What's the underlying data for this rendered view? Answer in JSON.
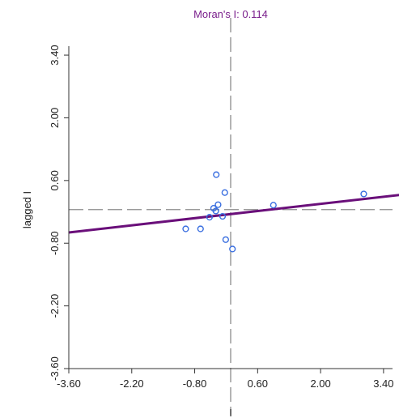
{
  "chart_data": {
    "type": "scatter",
    "title": "Moran's I: 0.114",
    "title_color": "#7a1f8c",
    "xlabel": "I",
    "ylabel": "lagged I",
    "xlim": [
      -3.6,
      3.6
    ],
    "ylim": [
      -3.6,
      3.6
    ],
    "x_ticks": [
      -3.6,
      -2.2,
      -0.8,
      0.6,
      2.0,
      3.4
    ],
    "x_tick_labels": [
      "-3.60",
      "-2.20",
      "-0.80",
      "0.60",
      "2.00",
      "3.40"
    ],
    "y_ticks": [
      -3.6,
      -2.2,
      -0.8,
      0.6,
      2.0,
      3.4
    ],
    "y_tick_labels": [
      "-3.60",
      "-2.20",
      "-0.80",
      "0.60",
      "2.00",
      "3.40"
    ],
    "grid": false,
    "points": [
      {
        "x": -1.0,
        "y": -0.48
      },
      {
        "x": -0.67,
        "y": -0.48
      },
      {
        "x": -0.47,
        "y": -0.22
      },
      {
        "x": -0.38,
        "y": -0.02
      },
      {
        "x": -0.33,
        "y": -0.08
      },
      {
        "x": -0.28,
        "y": 0.06
      },
      {
        "x": -0.32,
        "y": 0.73
      },
      {
        "x": -0.18,
        "y": -0.2
      },
      {
        "x": -0.13,
        "y": 0.33
      },
      {
        "x": -0.11,
        "y": -0.72
      },
      {
        "x": 0.04,
        "y": -0.93
      },
      {
        "x": 0.95,
        "y": 0.05
      },
      {
        "x": 2.96,
        "y": 0.3
      }
    ],
    "regression": {
      "slope": 0.114,
      "intercept": -0.15
    },
    "mean_lines": {
      "x": 0.0,
      "y": -0.05
    },
    "colors": {
      "points": "#3a6fe0",
      "regression": "#6a0f7a",
      "mean_lines": "#8c8c8c",
      "axis": "#333333"
    }
  }
}
